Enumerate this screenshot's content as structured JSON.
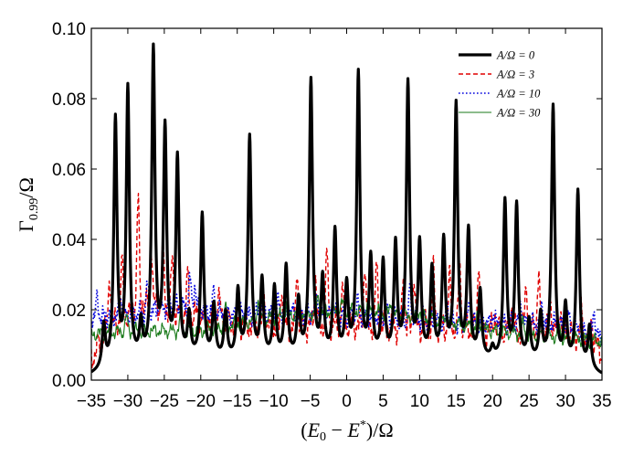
{
  "chart_data": {
    "type": "line",
    "title": "",
    "xlabel": "(E0 − E*)/Ω",
    "ylabel": "Γ0.99/Ω",
    "xlim": [
      -35,
      35
    ],
    "ylim": [
      0,
      0.1
    ],
    "xticks": [
      -35,
      -30,
      -25,
      -20,
      -15,
      -10,
      -5,
      0,
      5,
      10,
      15,
      20,
      25,
      30,
      35
    ],
    "xtick_labels": [
      "−35",
      "−30",
      "−25",
      "−20",
      "−15",
      "−10",
      "−5",
      "0",
      "5",
      "10",
      "15",
      "20",
      "25",
      "30",
      "35"
    ],
    "yticks": [
      0,
      0.02,
      0.04,
      0.06,
      0.08,
      0.1
    ],
    "ytick_labels": [
      "0.00",
      "0.02",
      "0.04",
      "0.06",
      "0.08",
      "0.10"
    ],
    "grid": false,
    "legend_position": "top-right",
    "series": [
      {
        "name": "A/Ω = 0",
        "color": "#000000",
        "style": "solid-thick",
        "peaks": [
          [
            -33.3,
            0.016
          ],
          [
            -31.7,
            0.074
          ],
          [
            -30.0,
            0.082
          ],
          [
            -28.2,
            0.014
          ],
          [
            -26.5,
            0.092
          ],
          [
            -24.9,
            0.069
          ],
          [
            -23.2,
            0.061
          ],
          [
            -21.6,
            0.016
          ],
          [
            -19.8,
            0.045
          ],
          [
            -18.2,
            0.019
          ],
          [
            -16.6,
            0.017
          ],
          [
            -14.9,
            0.023
          ],
          [
            -13.3,
            0.067
          ],
          [
            -11.6,
            0.026
          ],
          [
            -9.9,
            0.024
          ],
          [
            -8.3,
            0.03
          ],
          [
            -6.6,
            0.02
          ],
          [
            -4.9,
            0.083
          ],
          [
            -3.3,
            0.026
          ],
          [
            -1.6,
            0.04
          ],
          [
            0.0,
            0.024
          ],
          [
            1.6,
            0.085
          ],
          [
            3.3,
            0.032
          ],
          [
            5.0,
            0.031
          ],
          [
            6.7,
            0.036
          ],
          [
            8.4,
            0.082
          ],
          [
            10.0,
            0.036
          ],
          [
            11.7,
            0.029
          ],
          [
            13.3,
            0.037
          ],
          [
            15.0,
            0.076
          ],
          [
            16.7,
            0.04
          ],
          [
            18.3,
            0.023
          ],
          [
            20.0,
            0.007
          ],
          [
            21.7,
            0.049
          ],
          [
            23.3,
            0.048
          ],
          [
            25.0,
            0.015
          ],
          [
            26.6,
            0.017
          ],
          [
            28.3,
            0.077
          ],
          [
            30.0,
            0.02
          ],
          [
            31.7,
            0.054
          ],
          [
            33.3,
            0.016
          ]
        ]
      },
      {
        "name": "A/Ω = 3",
        "color": "#e00000",
        "style": "dashed",
        "bands": [
          [
            -35,
            0.006
          ],
          [
            -33,
            0.014
          ],
          [
            -28,
            0.022
          ],
          [
            -22,
            0.019
          ],
          [
            -15,
            0.016
          ],
          [
            -8,
            0.015
          ],
          [
            0,
            0.016
          ],
          [
            8,
            0.015
          ],
          [
            15,
            0.015
          ],
          [
            22,
            0.014
          ],
          [
            28,
            0.015
          ],
          [
            33,
            0.012
          ],
          [
            35,
            0.008
          ]
        ],
        "spikes": [
          [
            -32.5,
            0.03
          ],
          [
            -30.8,
            0.033
          ],
          [
            -28.6,
            0.051
          ],
          [
            -26.8,
            0.04
          ],
          [
            -25.2,
            0.039
          ],
          [
            -23.9,
            0.034
          ],
          [
            -21.8,
            0.029
          ],
          [
            -17.5,
            0.024
          ],
          [
            -11.3,
            0.024
          ],
          [
            -8.9,
            0.026
          ],
          [
            -6.8,
            0.031
          ],
          [
            -4.3,
            0.03
          ],
          [
            -2.7,
            0.036
          ],
          [
            -0.6,
            0.025
          ],
          [
            2.5,
            0.033
          ],
          [
            4.1,
            0.032
          ],
          [
            7.8,
            0.031
          ],
          [
            9.2,
            0.03
          ],
          [
            11.9,
            0.031
          ],
          [
            14.1,
            0.029
          ],
          [
            15.5,
            0.033
          ],
          [
            18.1,
            0.034
          ],
          [
            20.3,
            0.019
          ],
          [
            22.6,
            0.022
          ],
          [
            24.6,
            0.027
          ],
          [
            26.3,
            0.029
          ],
          [
            27.9,
            0.023
          ],
          [
            29.3,
            0.02
          ],
          [
            32.2,
            0.019
          ],
          [
            33.6,
            0.017
          ]
        ]
      },
      {
        "name": "A/Ω = 10",
        "color": "#0000dd",
        "style": "dotted",
        "bands": [
          [
            -35,
            0.018
          ],
          [
            -32,
            0.018
          ],
          [
            -28,
            0.019
          ],
          [
            -24,
            0.021
          ],
          [
            -20,
            0.02
          ],
          [
            -15,
            0.018
          ],
          [
            -10,
            0.019
          ],
          [
            -5,
            0.019
          ],
          [
            0,
            0.018
          ],
          [
            5,
            0.018
          ],
          [
            10,
            0.017
          ],
          [
            15,
            0.016
          ],
          [
            20,
            0.016
          ],
          [
            25,
            0.016
          ],
          [
            30,
            0.016
          ],
          [
            33,
            0.013
          ],
          [
            35,
            0.012
          ]
        ],
        "spikes": [
          [
            -34.2,
            0.023
          ],
          [
            -31.0,
            0.024
          ],
          [
            -27.3,
            0.027
          ],
          [
            -25.6,
            0.023
          ],
          [
            -21.5,
            0.029
          ],
          [
            -20.8,
            0.027
          ],
          [
            -18.2,
            0.025
          ],
          [
            -14.8,
            0.024
          ],
          [
            -11.9,
            0.023
          ],
          [
            -9.4,
            0.022
          ],
          [
            -4.1,
            0.025
          ],
          [
            -1.9,
            0.023
          ],
          [
            1.5,
            0.022
          ],
          [
            5.4,
            0.021
          ],
          [
            8.7,
            0.026
          ],
          [
            10.4,
            0.019
          ],
          [
            13.8,
            0.022
          ],
          [
            16.9,
            0.024
          ],
          [
            20.1,
            0.019
          ],
          [
            23.9,
            0.022
          ],
          [
            26.8,
            0.021
          ],
          [
            30.3,
            0.019
          ],
          [
            33.9,
            0.02
          ]
        ]
      },
      {
        "name": "A/Ω = 30",
        "color": "#1a7a1a",
        "style": "solid-thin",
        "bands": [
          [
            -35,
            0.013
          ],
          [
            -30,
            0.014
          ],
          [
            -25,
            0.014
          ],
          [
            -20,
            0.014
          ],
          [
            -15,
            0.016
          ],
          [
            -10,
            0.018
          ],
          [
            -5,
            0.019
          ],
          [
            0,
            0.02
          ],
          [
            5,
            0.019
          ],
          [
            10,
            0.018
          ],
          [
            15,
            0.016
          ],
          [
            20,
            0.014
          ],
          [
            25,
            0.013
          ],
          [
            30,
            0.012
          ],
          [
            35,
            0.011
          ]
        ],
        "spikes": [
          [
            -30.2,
            0.018
          ],
          [
            -22.7,
            0.021
          ],
          [
            -16.6,
            0.021
          ],
          [
            -12.1,
            0.023
          ],
          [
            -8.2,
            0.022
          ],
          [
            -3.9,
            0.024
          ],
          [
            -0.6,
            0.022
          ],
          [
            2.8,
            0.021
          ],
          [
            6.1,
            0.022
          ],
          [
            9.9,
            0.02
          ],
          [
            13.6,
            0.019
          ],
          [
            18.0,
            0.018
          ],
          [
            24.2,
            0.016
          ],
          [
            29.1,
            0.015
          ]
        ]
      }
    ]
  }
}
